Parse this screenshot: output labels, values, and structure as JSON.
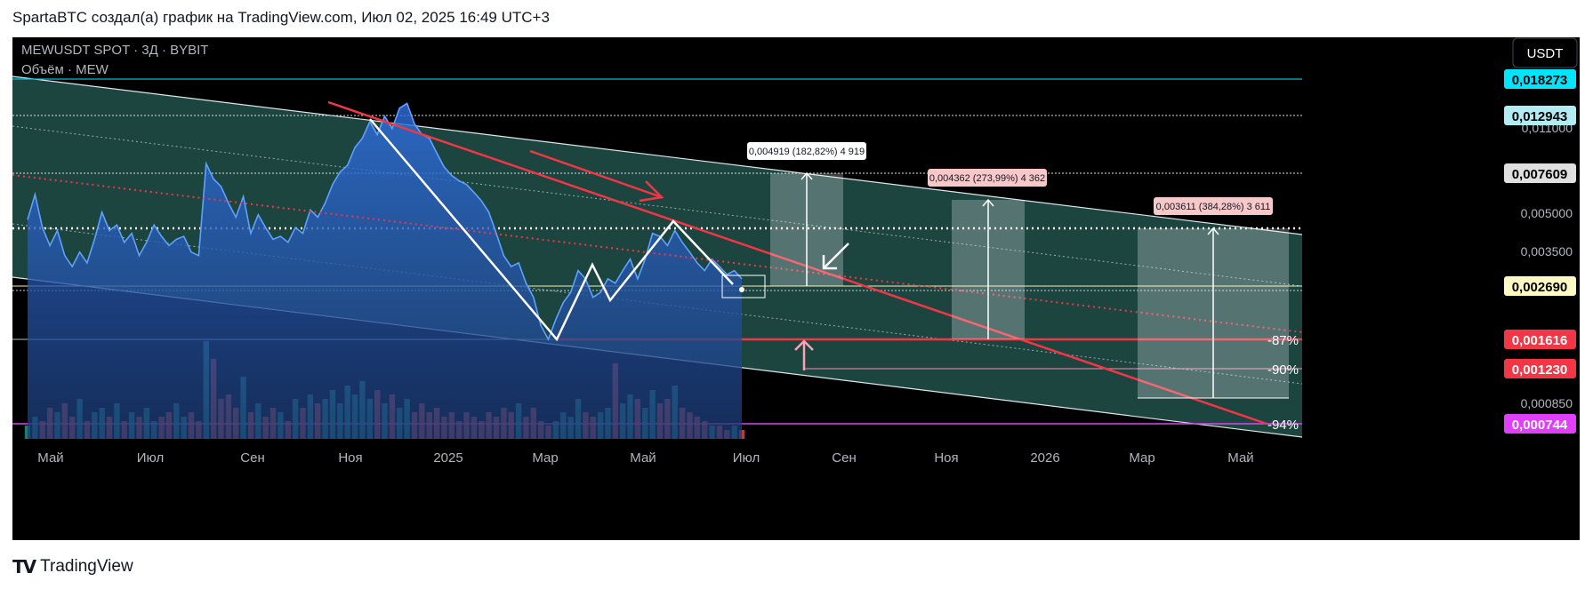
{
  "header": {
    "caption": "SpartaBTC создал(а) график на TradingView.com, Июл 02, 2025 16:49 UTC+3"
  },
  "legend": {
    "symbol": "MEWUSDT SPOT · 3Д · BYBIT",
    "volume": "Объём · MEW"
  },
  "currency_button": {
    "label": "USDT"
  },
  "footer": {
    "brand": "TradingView",
    "logo_text": "TV"
  },
  "colors": {
    "price_line": "#4a90ff",
    "channel_fill": "#1f4d47",
    "channel_line": "#d8e2e6",
    "resistance": "#f23645",
    "support_line": "#f23645",
    "white_pattern": "#ffffff",
    "vol_up": "#26a69a",
    "vol_down": "#ef5350",
    "magenta": "#e040fb",
    "cyan": "#00bcd4"
  },
  "chart_data": {
    "type": "area",
    "x_axis": {
      "ticks": [
        "Май",
        "Июл",
        "Сен",
        "Ноя",
        "2025",
        "Мар",
        "Май",
        "Июл",
        "Сен",
        "Ноя",
        "2026",
        "Мар",
        "Май"
      ]
    },
    "y_axis": {
      "scale": "log",
      "ticks": [
        "0,011000",
        "0,005000",
        "0,003500",
        "0,000850"
      ]
    },
    "price_labels": [
      {
        "value": "0,018273",
        "style": "cyan"
      },
      {
        "value": "0,012943",
        "style": "lightblue"
      },
      {
        "value": "0,007609",
        "style": "grey"
      },
      {
        "value": "0,002690",
        "style": "yellow"
      },
      {
        "value": "0,001616",
        "style": "red"
      },
      {
        "value": "0,001230",
        "style": "red"
      },
      {
        "value": "0,000744",
        "style": "magenta"
      }
    ],
    "percent_labels": [
      "-87%",
      "-90%",
      "-94%"
    ],
    "measure_labels": [
      "0,004919 (182,82%) 4 919",
      "0,004362 (273,99%) 4 362",
      "0,003611 (384,28%) 3 611"
    ],
    "series": [
      {
        "kind": "price",
        "values": [
          0.0045,
          0.0056,
          0.0042,
          0.0036,
          0.0041,
          0.0033,
          0.003,
          0.0034,
          0.0031,
          0.0038,
          0.0048,
          0.0041,
          0.0043,
          0.0037,
          0.004,
          0.0033,
          0.0037,
          0.0043,
          0.0039,
          0.0036,
          0.0038,
          0.0039,
          0.0034,
          0.0033,
          0.0073,
          0.0064,
          0.006,
          0.0052,
          0.0046,
          0.0055,
          0.004,
          0.0047,
          0.0042,
          0.0038,
          0.0039,
          0.0037,
          0.0042,
          0.004,
          0.0049,
          0.0046,
          0.0052,
          0.0061,
          0.0068,
          0.0072,
          0.0084,
          0.0091,
          0.0105,
          0.0094,
          0.011,
          0.0099,
          0.0118,
          0.0123,
          0.0103,
          0.0094,
          0.0091,
          0.008,
          0.0071,
          0.0066,
          0.0063,
          0.0061,
          0.0057,
          0.0053,
          0.0048,
          0.004,
          0.0033,
          0.003,
          0.0031,
          0.0026,
          0.0023,
          0.0018,
          0.0016,
          0.0019,
          0.0022,
          0.0024,
          0.0029,
          0.0027,
          0.0023,
          0.0024,
          0.0027,
          0.0026,
          0.0029,
          0.0032,
          0.0027,
          0.0032,
          0.004,
          0.0039,
          0.0036,
          0.0041,
          0.0037,
          0.0034,
          0.0031,
          0.0029,
          0.0032,
          0.003,
          0.0028,
          0.0029,
          0.0027
        ]
      },
      {
        "kind": "volume",
        "values": [
          3,
          5,
          4,
          7,
          6,
          8,
          5,
          9,
          4,
          6,
          7,
          5,
          8,
          4,
          6,
          5,
          7,
          4,
          5,
          6,
          8,
          5,
          6,
          4,
          22,
          18,
          9,
          10,
          7,
          14,
          6,
          8,
          5,
          7,
          6,
          4,
          9,
          7,
          10,
          8,
          9,
          11,
          8,
          12,
          10,
          13,
          9,
          11,
          8,
          10,
          7,
          9,
          6,
          8,
          6,
          7,
          5,
          6,
          4,
          6,
          5,
          4,
          6,
          5,
          7,
          6,
          8,
          5,
          7,
          4,
          3,
          4,
          6,
          5,
          9,
          6,
          5,
          6,
          7,
          17,
          8,
          10,
          9,
          7,
          11,
          8,
          9,
          12,
          7,
          6,
          5,
          4,
          3,
          3,
          2,
          3,
          2
        ]
      }
    ]
  }
}
